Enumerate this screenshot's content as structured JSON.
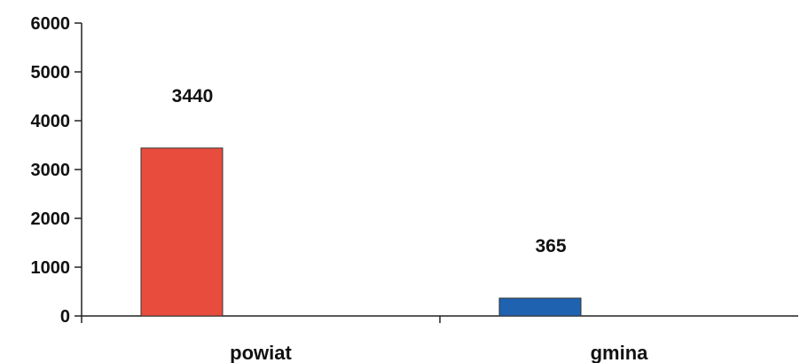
{
  "chart_data": {
    "type": "bar",
    "categories": [
      "powiat",
      "gmina"
    ],
    "values": [
      3440,
      365
    ],
    "data_labels": [
      "3440",
      "365"
    ],
    "colors": [
      "#e84c3d",
      "#1f62b0"
    ],
    "title": "",
    "xlabel": "",
    "ylabel": "",
    "ylim": [
      0,
      6000
    ],
    "yticks": [
      0,
      1000,
      2000,
      3000,
      4000,
      5000,
      6000
    ],
    "grid": false,
    "legend": "none"
  }
}
